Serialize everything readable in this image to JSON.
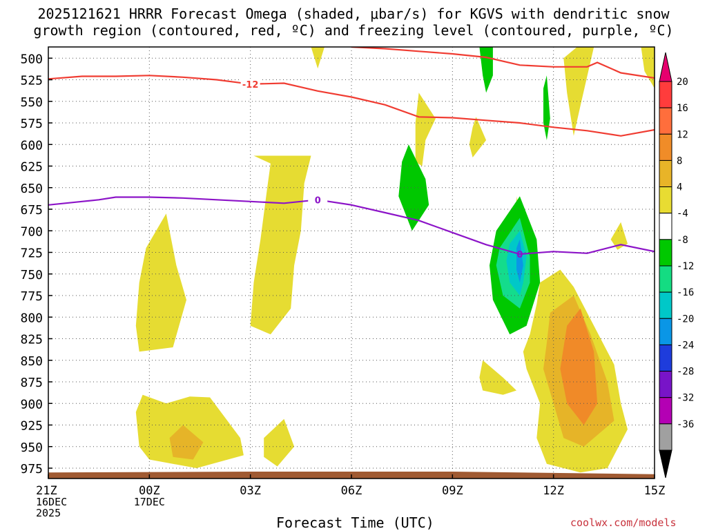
{
  "chart_data": {
    "type": "contour",
    "title_line1": "2025121621 HRRR Forecast Omega (shaded, μbar/s) for KGVS with dendritic snow",
    "title_line2": "growth region (contoured, red, ºC) and freezing level (contoured, purple, ºC)",
    "xlabel": "Forecast Time (UTC)",
    "credit": "coolwx.com/models",
    "x_range": [
      0,
      18
    ],
    "y_range": [
      487,
      987
    ],
    "y_ticks": [
      500,
      525,
      550,
      575,
      600,
      625,
      650,
      675,
      700,
      725,
      750,
      775,
      800,
      825,
      850,
      875,
      900,
      925,
      950,
      975
    ],
    "x_ticks": [
      {
        "x": 0,
        "lines": [
          "21Z",
          "16DEC",
          "2025"
        ]
      },
      {
        "x": 3,
        "lines": [
          "00Z",
          "17DEC"
        ]
      },
      {
        "x": 6,
        "lines": [
          "03Z"
        ]
      },
      {
        "x": 9,
        "lines": [
          "06Z"
        ]
      },
      {
        "x": 12,
        "lines": [
          "09Z"
        ]
      },
      {
        "x": 15,
        "lines": [
          "12Z"
        ]
      },
      {
        "x": 18,
        "lines": [
          "15Z"
        ]
      }
    ],
    "colorbar": {
      "labels": [
        "20",
        "16",
        "12",
        "8",
        "4",
        "-4",
        "-8",
        "-12",
        "-16",
        "-20",
        "-24",
        "-28",
        "-32",
        "-36"
      ],
      "colors": [
        "#e6006e",
        "#ff3c3c",
        "#ff6e3c",
        "#f08c28",
        "#e8b428",
        "#e8dc32",
        "#ffffff",
        "#00c800",
        "#14dc82",
        "#00c8c8",
        "#0a96e6",
        "#1e3cdc",
        "#7814c8",
        "#b400b4",
        "#a0a0a0",
        "#000000"
      ]
    },
    "colors": {
      "yellow": "#e6dc32",
      "gold": "#e6b428",
      "orange": "#f08a28",
      "green": "#00c800",
      "teal": "#14dc8c",
      "cyan": "#00c8c8",
      "blue": "#0a96e6",
      "red_contour": "#f03c32",
      "purple_contour": "#8c14c8",
      "ground": "#a05a32"
    },
    "contours": {
      "dgz_upper": {
        "label": "-12",
        "label_at": [
          6.0,
          530
        ],
        "points": [
          [
            0,
            524
          ],
          [
            1,
            521
          ],
          [
            2,
            521
          ],
          [
            3,
            520
          ],
          [
            4,
            522
          ],
          [
            5,
            525
          ],
          [
            6,
            530
          ],
          [
            7,
            529
          ],
          [
            8,
            538
          ],
          [
            9,
            545
          ],
          [
            10,
            554
          ],
          [
            11,
            568
          ],
          [
            12,
            569
          ],
          [
            13,
            572
          ],
          [
            14,
            575
          ],
          [
            15,
            580
          ],
          [
            16,
            584
          ],
          [
            17,
            590
          ],
          [
            18,
            583
          ]
        ]
      },
      "dgz_lower": {
        "points": [
          [
            9,
            487
          ],
          [
            10,
            489
          ],
          [
            11,
            492
          ],
          [
            12,
            495
          ],
          [
            13,
            499
          ],
          [
            14,
            508
          ],
          [
            15,
            510
          ],
          [
            16,
            510
          ],
          [
            16.3,
            505
          ],
          [
            17,
            517
          ],
          [
            18,
            523
          ]
        ]
      },
      "freezing_level": {
        "label": "0",
        "label_at": [
          8.0,
          664
        ],
        "points": [
          [
            0,
            670
          ],
          [
            1,
            666
          ],
          [
            1.5,
            664
          ],
          [
            2,
            661
          ],
          [
            3,
            661
          ],
          [
            4,
            662
          ],
          [
            5,
            664
          ],
          [
            6,
            666
          ],
          [
            7,
            668
          ],
          [
            8,
            664
          ],
          [
            9,
            670
          ],
          [
            10,
            679
          ],
          [
            11,
            688
          ],
          [
            12,
            702
          ],
          [
            13,
            716
          ],
          [
            14,
            727
          ],
          [
            15,
            724
          ],
          [
            16,
            726
          ],
          [
            17,
            716
          ],
          [
            18,
            724
          ]
        ]
      }
    },
    "omega_regions": [
      {
        "level": "yellow",
        "points": [
          [
            7.8,
            487
          ],
          [
            8.0,
            512
          ],
          [
            8.2,
            487
          ]
        ]
      },
      {
        "level": "yellow",
        "points": [
          [
            6.1,
            613
          ],
          [
            7.8,
            613
          ],
          [
            7.6,
            645
          ],
          [
            7.5,
            700
          ],
          [
            7.3,
            740
          ],
          [
            7.2,
            790
          ],
          [
            6.6,
            820
          ],
          [
            6.0,
            810
          ],
          [
            6.1,
            760
          ],
          [
            6.3,
            710
          ],
          [
            6.5,
            650
          ],
          [
            6.6,
            622
          ]
        ]
      },
      {
        "level": "yellow",
        "points": [
          [
            2.6,
            810
          ],
          [
            2.7,
            760
          ],
          [
            2.9,
            720
          ],
          [
            3.5,
            680
          ],
          [
            3.8,
            740
          ],
          [
            4.1,
            780
          ],
          [
            3.7,
            835
          ],
          [
            2.7,
            840
          ]
        ]
      },
      {
        "level": "yellow",
        "points": [
          [
            2.6,
            910
          ],
          [
            2.8,
            890
          ],
          [
            3.5,
            900
          ],
          [
            4.2,
            892
          ],
          [
            4.8,
            893
          ],
          [
            5.7,
            940
          ],
          [
            5.8,
            960
          ],
          [
            4.4,
            975
          ],
          [
            3.0,
            965
          ],
          [
            2.7,
            950
          ]
        ]
      },
      {
        "level": "gold",
        "points": [
          [
            3.6,
            940
          ],
          [
            4.0,
            925
          ],
          [
            4.6,
            945
          ],
          [
            4.3,
            965
          ],
          [
            3.7,
            962
          ]
        ]
      },
      {
        "level": "yellow",
        "points": [
          [
            6.4,
            940
          ],
          [
            7.0,
            918
          ],
          [
            7.3,
            950
          ],
          [
            6.8,
            973
          ],
          [
            6.4,
            962
          ]
        ]
      },
      {
        "level": "yellow",
        "points": [
          [
            11.0,
            540
          ],
          [
            11.5,
            570
          ],
          [
            11.2,
            595
          ],
          [
            11.1,
            625
          ],
          [
            10.9,
            620
          ],
          [
            10.9,
            575
          ]
        ]
      },
      {
        "level": "yellow",
        "points": [
          [
            12.7,
            568
          ],
          [
            13.0,
            595
          ],
          [
            12.6,
            615
          ],
          [
            12.5,
            600
          ],
          [
            12.6,
            580
          ]
        ]
      },
      {
        "level": "yellow",
        "points": [
          [
            12.9,
            850
          ],
          [
            13.5,
            870
          ],
          [
            13.9,
            885
          ],
          [
            13.5,
            890
          ],
          [
            12.9,
            885
          ],
          [
            12.8,
            870
          ]
        ]
      },
      {
        "level": "yellow",
        "points": [
          [
            13.9,
            660
          ],
          [
            14.1,
            700
          ],
          [
            14.0,
            720
          ],
          [
            13.9,
            700
          ]
        ]
      },
      {
        "level": "yellow",
        "points": [
          [
            15.7,
            487
          ],
          [
            16.2,
            487
          ],
          [
            15.8,
            555
          ],
          [
            15.6,
            590
          ],
          [
            15.4,
            540
          ],
          [
            15.3,
            500
          ]
        ]
      },
      {
        "level": "yellow",
        "points": [
          [
            17.7,
            487
          ],
          [
            18.0,
            487
          ],
          [
            18.0,
            535
          ],
          [
            17.7,
            515
          ],
          [
            17.6,
            487
          ]
        ]
      },
      {
        "level": "yellow",
        "points": [
          [
            14.6,
            760
          ],
          [
            15.2,
            745
          ],
          [
            15.6,
            765
          ],
          [
            16.2,
            810
          ],
          [
            16.8,
            855
          ],
          [
            17.0,
            900
          ],
          [
            17.2,
            930
          ],
          [
            16.6,
            975
          ],
          [
            15.8,
            980
          ],
          [
            14.8,
            970
          ],
          [
            14.5,
            940
          ],
          [
            14.6,
            900
          ],
          [
            14.2,
            860
          ],
          [
            14.1,
            840
          ],
          [
            14.3,
            820
          ],
          [
            14.5,
            785
          ]
        ]
      },
      {
        "level": "gold",
        "points": [
          [
            14.9,
            795
          ],
          [
            15.6,
            775
          ],
          [
            16.1,
            820
          ],
          [
            16.6,
            875
          ],
          [
            16.8,
            920
          ],
          [
            15.9,
            950
          ],
          [
            15.3,
            940
          ],
          [
            15.0,
            900
          ],
          [
            14.7,
            860
          ],
          [
            14.8,
            830
          ]
        ]
      },
      {
        "level": "orange",
        "points": [
          [
            15.4,
            810
          ],
          [
            15.8,
            790
          ],
          [
            16.2,
            840
          ],
          [
            16.3,
            900
          ],
          [
            15.9,
            925
          ],
          [
            15.4,
            900
          ],
          [
            15.2,
            860
          ],
          [
            15.3,
            835
          ]
        ]
      },
      {
        "level": "yellow",
        "points": [
          [
            16.7,
            710
          ],
          [
            17.0,
            690
          ],
          [
            17.2,
            715
          ],
          [
            16.9,
            722
          ]
        ]
      },
      {
        "level": "green",
        "points": [
          [
            12.8,
            487
          ],
          [
            13.2,
            487
          ],
          [
            13.2,
            520
          ],
          [
            13.0,
            540
          ],
          [
            12.9,
            520
          ]
        ]
      },
      {
        "level": "green",
        "points": [
          [
            14.7,
            535
          ],
          [
            14.8,
            520
          ],
          [
            14.9,
            570
          ],
          [
            14.8,
            595
          ],
          [
            14.7,
            575
          ]
        ]
      },
      {
        "level": "green",
        "points": [
          [
            10.7,
            600
          ],
          [
            11.2,
            640
          ],
          [
            11.3,
            670
          ],
          [
            10.8,
            700
          ],
          [
            10.4,
            660
          ],
          [
            10.5,
            620
          ]
        ]
      },
      {
        "level": "green",
        "points": [
          [
            13.3,
            700
          ],
          [
            14.0,
            660
          ],
          [
            14.5,
            710
          ],
          [
            14.6,
            760
          ],
          [
            14.2,
            810
          ],
          [
            13.7,
            820
          ],
          [
            13.2,
            780
          ],
          [
            13.1,
            740
          ]
        ]
      },
      {
        "level": "teal",
        "points": [
          [
            13.4,
            720
          ],
          [
            14.0,
            685
          ],
          [
            14.3,
            730
          ],
          [
            14.3,
            760
          ],
          [
            14.0,
            790
          ],
          [
            13.5,
            775
          ],
          [
            13.3,
            740
          ]
        ]
      },
      {
        "level": "cyan",
        "points": [
          [
            13.7,
            715
          ],
          [
            14.0,
            700
          ],
          [
            14.2,
            730
          ],
          [
            14.1,
            760
          ],
          [
            14.0,
            775
          ],
          [
            13.7,
            760
          ],
          [
            13.6,
            735
          ]
        ]
      },
      {
        "level": "blue",
        "points": [
          [
            13.9,
            720
          ],
          [
            14.0,
            710
          ],
          [
            14.1,
            740
          ],
          [
            14.0,
            760
          ],
          [
            13.9,
            745
          ]
        ]
      }
    ],
    "ground_top": [
      [
        0,
        980
      ],
      [
        6,
        979
      ],
      [
        12,
        979
      ],
      [
        18,
        982
      ]
    ]
  }
}
